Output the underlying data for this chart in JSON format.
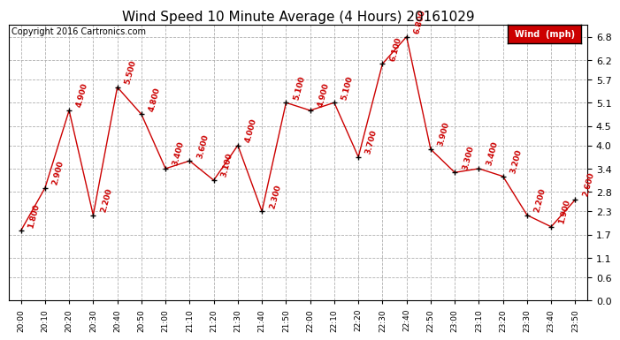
{
  "title": "Wind Speed 10 Minute Average (4 Hours) 20161029",
  "copyright": "Copyright 2016 Cartronics.com",
  "legend_label": "Wind  (mph)",
  "x_labels": [
    "20:00",
    "20:10",
    "20:20",
    "20:30",
    "20:40",
    "20:50",
    "21:00",
    "21:10",
    "21:20",
    "21:30",
    "21:40",
    "21:50",
    "22:00",
    "22:10",
    "22:20",
    "22:30",
    "22:40",
    "22:50",
    "23:00",
    "23:10",
    "23:20",
    "23:30",
    "23:40",
    "23:50"
  ],
  "y_values": [
    1.8,
    2.9,
    4.9,
    2.2,
    5.5,
    4.8,
    3.4,
    3.6,
    3.1,
    4.0,
    2.3,
    5.1,
    4.9,
    5.1,
    3.7,
    6.1,
    6.8,
    3.9,
    3.3,
    3.4,
    3.2,
    2.2,
    1.9,
    2.6
  ],
  "point_labels": [
    "1.800",
    "2.900",
    "4.900",
    "2.200",
    "5.500",
    "4.800",
    "3.400",
    "3.600",
    "3.100",
    "4.000",
    "2.300",
    "5.100",
    "4.900",
    "5.100",
    "3.700",
    "6.100",
    "6.800",
    "3.900",
    "3.300",
    "3.400",
    "3.200",
    "2.200",
    "1.900",
    "2.600"
  ],
  "line_color": "#cc0000",
  "marker_color": "black",
  "label_color": "#cc0000",
  "bg_color": "#ffffff",
  "grid_color": "#b0b0b0",
  "y_ticks": [
    0.0,
    0.6,
    1.1,
    1.7,
    2.3,
    2.8,
    3.4,
    4.0,
    4.5,
    5.1,
    5.7,
    6.2,
    6.8
  ],
  "ylim": [
    0.0,
    7.1
  ],
  "legend_bg": "#cc0000",
  "legend_text_color": "#ffffff",
  "title_fontsize": 11,
  "copyright_fontsize": 7,
  "label_fontsize": 6.5,
  "tick_fontsize": 8
}
